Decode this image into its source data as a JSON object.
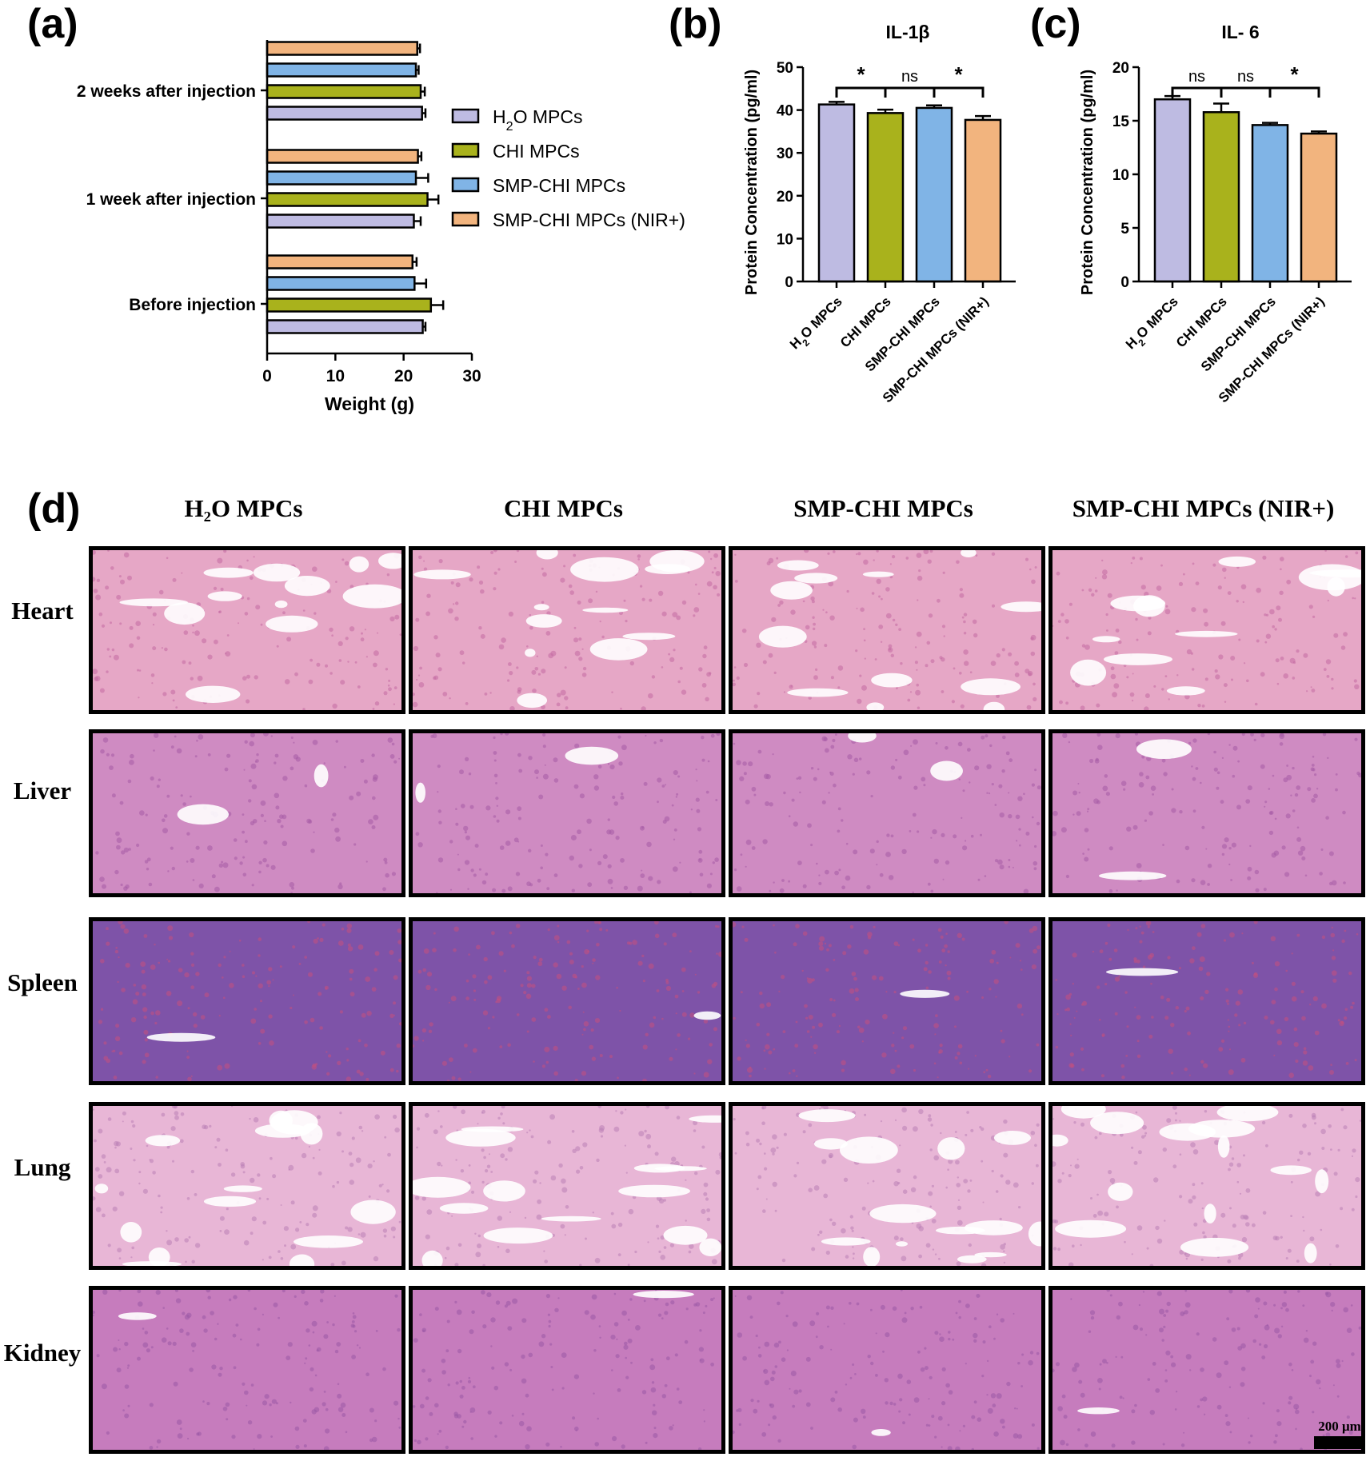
{
  "panels": {
    "a": "(a)",
    "b": "(b)",
    "c": "(c)",
    "d": "(d)"
  },
  "colors": {
    "H2O MPCs": "#bebbe2",
    "CHI MPCs": "#a9b21c",
    "SMP-CHI MPCs": "#80b4e6",
    "SMP-CHI MPCs (NIR+)": "#f2b47e"
  },
  "chart_data": [
    {
      "panel": "a",
      "type": "bar",
      "orientation": "horizontal",
      "title": "",
      "xlabel": "Weight (g)",
      "ylabel": "",
      "xlim": [
        0,
        30
      ],
      "xticks": [
        0,
        10,
        20,
        30
      ],
      "categories": [
        "Before injection",
        "1 week after injection",
        "2 weeks after injection"
      ],
      "series": [
        {
          "name": "H2O MPCs",
          "values": [
            22.8,
            21.5,
            22.7
          ],
          "errors": [
            0.4,
            1.0,
            0.5
          ]
        },
        {
          "name": "CHI MPCs",
          "values": [
            24.0,
            23.5,
            22.5
          ],
          "errors": [
            1.8,
            1.6,
            0.6
          ]
        },
        {
          "name": "SMP-CHI MPCs",
          "values": [
            21.6,
            21.8,
            21.8
          ],
          "errors": [
            1.7,
            1.8,
            0.4
          ]
        },
        {
          "name": "SMP-CHI MPCs (NIR+)",
          "values": [
            21.3,
            22.1,
            22.0
          ],
          "errors": [
            0.6,
            0.5,
            0.4
          ]
        }
      ],
      "legend": {
        "position": "right",
        "items": [
          "H2O MPCs",
          "CHI MPCs",
          "SMP-CHI MPCs",
          "SMP-CHI MPCs (NIR+)"
        ]
      }
    },
    {
      "panel": "b",
      "type": "bar",
      "title": "IL-1β",
      "xlabel": "",
      "ylabel": "Protein Concentration (pg/ml)",
      "ylim": [
        0,
        50
      ],
      "yticks": [
        0,
        10,
        20,
        30,
        40,
        50
      ],
      "categories": [
        "H2O MPCs",
        "CHI MPCs",
        "SMP-CHI MPCs",
        "SMP-CHI MPCs (NIR+)"
      ],
      "values": [
        41.3,
        39.3,
        40.5,
        37.7
      ],
      "errors": [
        0.6,
        0.8,
        0.6,
        0.9
      ],
      "significance": [
        "*",
        "ns",
        "*"
      ]
    },
    {
      "panel": "c",
      "type": "bar",
      "title": "IL- 6",
      "xlabel": "",
      "ylabel": "Protein Concentration (pg/ml)",
      "ylim": [
        0,
        20
      ],
      "yticks": [
        0,
        5,
        10,
        15,
        20
      ],
      "categories": [
        "H2O MPCs",
        "CHI MPCs",
        "SMP-CHI MPCs",
        "SMP-CHI MPCs (NIR+)"
      ],
      "values": [
        17.0,
        15.8,
        14.6,
        13.8
      ],
      "errors": [
        0.3,
        0.8,
        0.2,
        0.2
      ],
      "significance": [
        "ns",
        "ns",
        "*"
      ]
    }
  ],
  "histology": {
    "columns": [
      "H₂O MPCs",
      "CHI MPCs",
      "SMP-CHI MPCs",
      "SMP-CHI MPCs (NIR+)"
    ],
    "rows": [
      "Heart",
      "Liver",
      "Spleen",
      "Lung",
      "Kidney"
    ],
    "scale_bar": "200 μm"
  }
}
